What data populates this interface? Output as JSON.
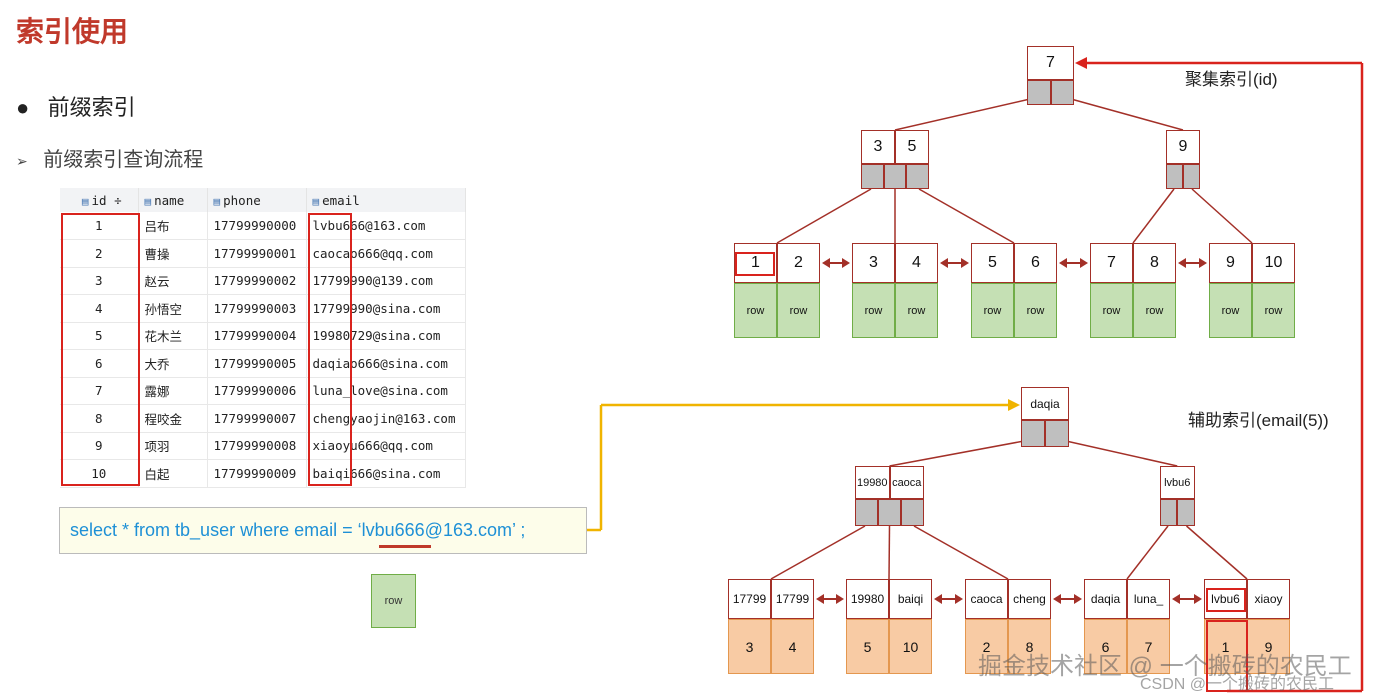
{
  "slide": {
    "title": "索引使用",
    "bullet": "前缀索引",
    "sub_bullet": "前缀索引查询流程",
    "bullet_icon": "filled-circle",
    "sub_bullet_icon": "arrowhead"
  },
  "table": {
    "columns": [
      "id",
      "name",
      "phone",
      "email"
    ],
    "rows": [
      [
        "1",
        "吕布",
        "17799990000",
        "lvbu666@163.com"
      ],
      [
        "2",
        "曹操",
        "17799990001",
        "caocao666@qq.com"
      ],
      [
        "3",
        "赵云",
        "17799990002",
        "17799990@139.com"
      ],
      [
        "4",
        "孙悟空",
        "17799990003",
        "17799990@sina.com"
      ],
      [
        "5",
        "花木兰",
        "17799990004",
        "19980729@sina.com"
      ],
      [
        "6",
        "大乔",
        "17799990005",
        "daqiao666@sina.com"
      ],
      [
        "7",
        "露娜",
        "17799990006",
        "luna_love@sina.com"
      ],
      [
        "8",
        "程咬金",
        "17799990007",
        "chengyaojin@163.com"
      ],
      [
        "9",
        "项羽",
        "17799990008",
        "xiaoyu666@qq.com"
      ],
      [
        "10",
        "白起",
        "17799990009",
        "baiqi666@sina.com"
      ]
    ]
  },
  "sql": {
    "text": "select * from tb_user where email = ‘lvbu666@163.com’ ;"
  },
  "row_label": "row",
  "clustered": {
    "label": "聚集索引(id)",
    "root": [
      "7"
    ],
    "level2": [
      [
        "3",
        "5"
      ],
      [
        "9"
      ]
    ],
    "leaves": [
      {
        "keys": [
          "1",
          "2"
        ],
        "rows": [
          "row",
          "row"
        ]
      },
      {
        "keys": [
          "3",
          "4"
        ],
        "rows": [
          "row",
          "row"
        ]
      },
      {
        "keys": [
          "5",
          "6"
        ],
        "rows": [
          "row",
          "row"
        ]
      },
      {
        "keys": [
          "7",
          "8"
        ],
        "rows": [
          "row",
          "row"
        ]
      },
      {
        "keys": [
          "9",
          "10"
        ],
        "rows": [
          "row",
          "row"
        ]
      }
    ]
  },
  "secondary": {
    "label": "辅助索引(email(5))",
    "root": [
      "daqia"
    ],
    "level2": [
      [
        "19980",
        "caoca"
      ],
      [
        "lvbu6"
      ]
    ],
    "leaves": [
      {
        "keys": [
          "17799",
          "17799"
        ],
        "rows": [
          "3",
          "4"
        ]
      },
      {
        "keys": [
          "19980",
          "baiqi"
        ],
        "rows": [
          "5",
          "10"
        ]
      },
      {
        "keys": [
          "caoca",
          "cheng"
        ],
        "rows": [
          "2",
          "8"
        ]
      },
      {
        "keys": [
          "daqia",
          "luna_"
        ],
        "rows": [
          "6",
          "7"
        ]
      },
      {
        "keys": [
          "lvbu6",
          "xiaoy"
        ],
        "rows": [
          "1",
          "9"
        ]
      }
    ]
  },
  "watermark": {
    "line1": "掘金技术社区 @ 一个搬砖的农民工",
    "line2": "CSDN @一个搬砖的农民工"
  },
  "colors": {
    "title": "#c0392b",
    "highlight": "#d9231d",
    "sql_text": "#1e90d6",
    "lookup_arrow": "#f0b400",
    "tree_line": "#a33028",
    "row_green": "#c5e0b4",
    "row_orange": "#f8cba4"
  }
}
